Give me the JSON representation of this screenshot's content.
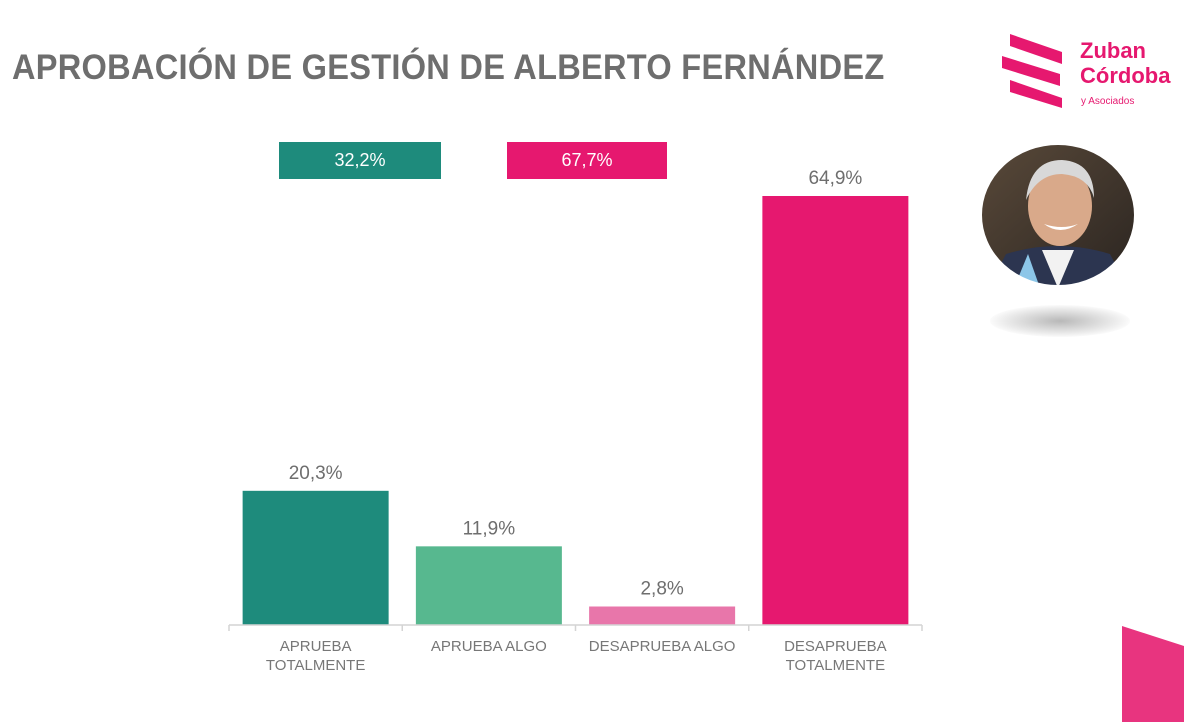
{
  "title": "APROBACIÓN DE GESTIÓN DE ALBERTO FERNÁNDEZ",
  "logo": {
    "name": "Zuban\nCórdoba",
    "subtitle": "y Asociados"
  },
  "summary": {
    "approve": {
      "label": "32,2%",
      "color": "#1e8b7c"
    },
    "disapprove": {
      "label": "67,7%",
      "color": "#e6186f"
    }
  },
  "chart_data": {
    "type": "bar",
    "categories": [
      [
        "APRUEBA",
        "TOTALMENTE"
      ],
      [
        "APRUEBA ALGO"
      ],
      [
        "DESAPRUEBA ALGO"
      ],
      [
        "DESAPRUEBA",
        "TOTALMENTE"
      ]
    ],
    "values": [
      20.3,
      11.9,
      2.8,
      64.9
    ],
    "value_labels": [
      "20,3%",
      "11,9%",
      "2,8%",
      "64,9%"
    ],
    "colors": [
      "#1e8b7c",
      "#57b88f",
      "#e876aa",
      "#e6186f"
    ],
    "ylim": [
      0,
      64.9
    ],
    "grid": false,
    "legend": "none"
  },
  "colors": {
    "brand": "#e6186f",
    "title": "#6e6e6e",
    "axis": "#d4d4d4"
  },
  "icons": {
    "logo": "zuban-cordoba-logo",
    "portrait": "person-portrait"
  }
}
